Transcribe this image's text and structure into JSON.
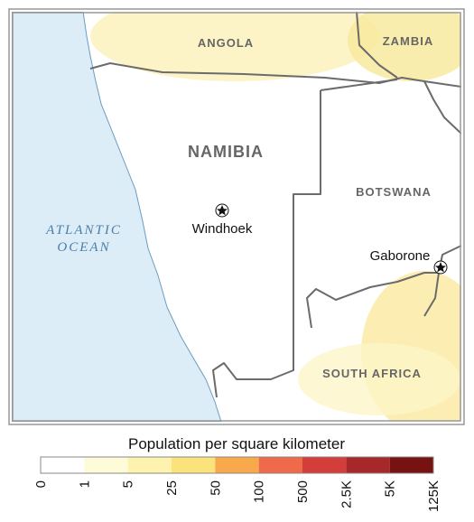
{
  "labels": {
    "angola": "ANGOLA",
    "zambia": "ZAMBIA",
    "namibia": "NAMIBIA",
    "botswana": "BOTSWANA",
    "south_africa": "SOUTH AFRICA",
    "ocean_line1": "ATLANTIC",
    "ocean_line2": "OCEAN",
    "windhoek": "Windhoek",
    "gaborone": "Gaborone"
  },
  "legend": {
    "title": "Population per square kilometer",
    "ticks": [
      "0",
      "1",
      "5",
      "25",
      "50",
      "100",
      "500",
      "2.5K",
      "5K",
      "125K"
    ],
    "colors": [
      "#ffffff",
      "#fefbd8",
      "#fdf2ae",
      "#fbe27a",
      "#f7a94b",
      "#ef6a4b",
      "#d33d3a",
      "#a62828",
      "#771212"
    ]
  }
}
